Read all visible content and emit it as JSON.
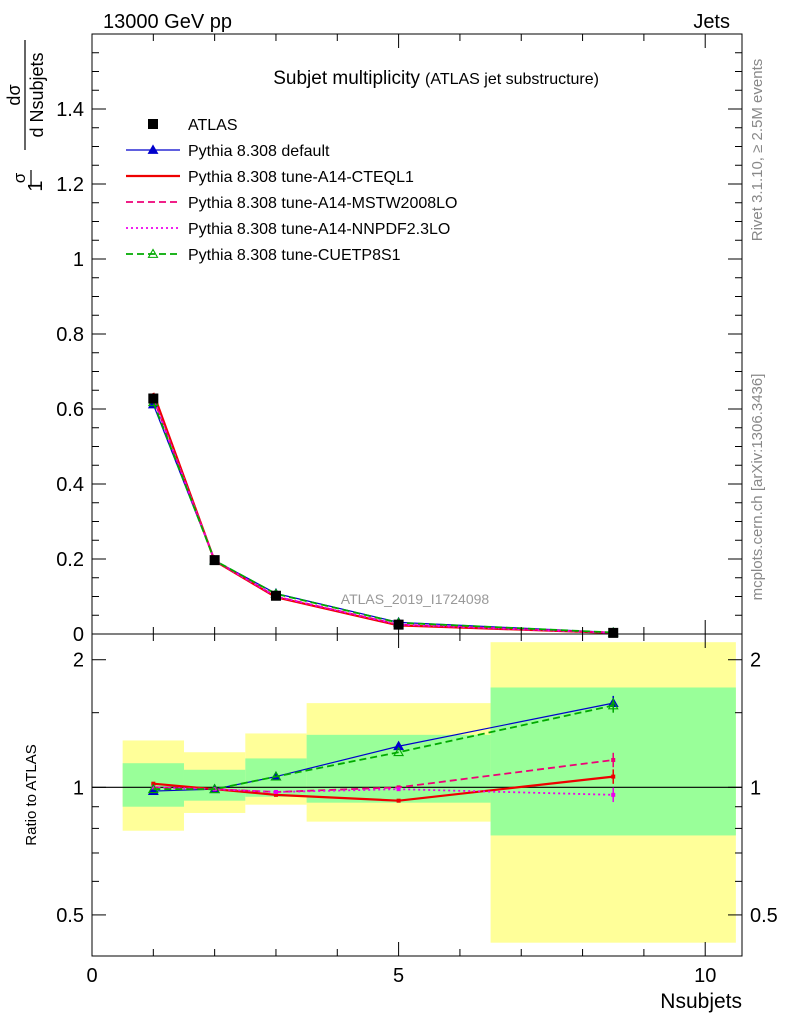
{
  "header": {
    "beam": "13000 GeV pp",
    "process": "Jets",
    "side_top": "Rivet 3.1.10, ≥ 2.5M events",
    "side_bottom": "mcplots.cern.ch [arXiv:1306.3436]"
  },
  "chart_data": [
    {
      "type": "line",
      "panel": "main",
      "title": "Subjet multiplicity",
      "subtitle": "(ATLAS jet substructure)",
      "watermark": "ATLAS_2019_I1724098",
      "ylabel": {
        "prefix": "1",
        "sigma": "σ",
        "num": "dσ",
        "den": "d Nsubjets"
      },
      "xlabel": "Nsubjets",
      "xlim": [
        0,
        10.6
      ],
      "ylim": [
        0,
        1.6
      ],
      "yticks": [
        0,
        0.2,
        0.4,
        0.6,
        0.8,
        1,
        1.2,
        1.4
      ],
      "ytick_labels": [
        "0",
        "0.2",
        "0.4",
        "0.6",
        "0.8",
        "1",
        "1.2",
        "1.4"
      ],
      "x": [
        1,
        2,
        3,
        5,
        8.5
      ],
      "legend_position": "top-left",
      "series": [
        {
          "name": "ATLAS",
          "color": "#000000",
          "style": "data",
          "values": [
            0.628,
            0.197,
            0.102,
            0.025,
            0.003
          ]
        },
        {
          "name": "Pythia 8.308 default",
          "color": "#0000cc",
          "style": "solid-thin",
          "marker": "triangle-filled",
          "values": [
            0.612,
            0.196,
            0.108,
            0.031,
            0.004
          ]
        },
        {
          "name": "Pythia 8.308 tune-A14-CTEQL1",
          "color": "#ee0000",
          "style": "solid-thick",
          "values": [
            0.643,
            0.195,
            0.098,
            0.023,
            0.003
          ]
        },
        {
          "name": "Pythia 8.308 tune-A14-MSTW2008LO",
          "color": "#ee0077",
          "style": "dashed",
          "values": [
            0.629,
            0.196,
            0.1,
            0.025,
            0.0035
          ]
        },
        {
          "name": "Pythia 8.308 tune-A14-NNPDF2.3LO",
          "color": "#ee00ee",
          "style": "dotted",
          "values": [
            0.63,
            0.196,
            0.1,
            0.025,
            0.003
          ]
        },
        {
          "name": "Pythia 8.308 tune-CUETP8S1",
          "color": "#00aa00",
          "style": "dashed",
          "marker": "triangle-open",
          "values": [
            0.618,
            0.196,
            0.107,
            0.03,
            0.004
          ]
        }
      ]
    },
    {
      "type": "line",
      "panel": "ratio",
      "ylabel": "Ratio to ATLAS",
      "xlim": [
        0,
        10.6
      ],
      "ylim": [
        0.4,
        2.3
      ],
      "yscale": "log",
      "yticks": [
        0.5,
        1,
        2
      ],
      "ytick_labels": [
        "0.5",
        "1",
        "2"
      ],
      "xticks": [
        0,
        5,
        10
      ],
      "xtick_labels": [
        "0",
        "5",
        "10"
      ],
      "x": [
        1,
        2,
        3,
        5,
        8.5
      ],
      "bands": [
        {
          "x0": 0.5,
          "x1": 1.5,
          "yellow": [
            0.79,
            1.29
          ],
          "green": [
            0.9,
            1.14
          ]
        },
        {
          "x0": 1.5,
          "x1": 2.5,
          "yellow": [
            0.87,
            1.21
          ],
          "green": [
            0.93,
            1.1
          ]
        },
        {
          "x0": 2.5,
          "x1": 3.5,
          "yellow": [
            0.91,
            1.34
          ],
          "green": [
            0.95,
            1.17
          ]
        },
        {
          "x0": 3.5,
          "x1": 6.5,
          "yellow": [
            0.83,
            1.58
          ],
          "green": [
            0.92,
            1.33
          ]
        },
        {
          "x0": 6.5,
          "x1": 10.5,
          "yellow": [
            0.43,
            2.2
          ],
          "green": [
            0.77,
            1.72
          ]
        }
      ],
      "series": [
        {
          "name": "Pythia 8.308 default",
          "color": "#0000cc",
          "values": [
            0.98,
            0.99,
            1.06,
            1.25,
            1.58
          ]
        },
        {
          "name": "Pythia 8.308 tune-A14-CTEQL1",
          "color": "#ee0000",
          "values": [
            1.02,
            0.99,
            0.96,
            0.93,
            1.06
          ]
        },
        {
          "name": "Pythia 8.308 tune-A14-MSTW2008LO",
          "color": "#ee0077",
          "values": [
            1.0,
            0.99,
            0.975,
            1.0,
            1.16
          ]
        },
        {
          "name": "Pythia 8.308 tune-A14-NNPDF2.3LO",
          "color": "#ee00ee",
          "values": [
            1.0,
            0.99,
            0.975,
            0.99,
            0.96
          ]
        },
        {
          "name": "Pythia 8.308 tune-CUETP8S1",
          "color": "#00aa00",
          "values": [
            0.99,
            0.99,
            1.06,
            1.21,
            1.56
          ]
        }
      ]
    }
  ]
}
